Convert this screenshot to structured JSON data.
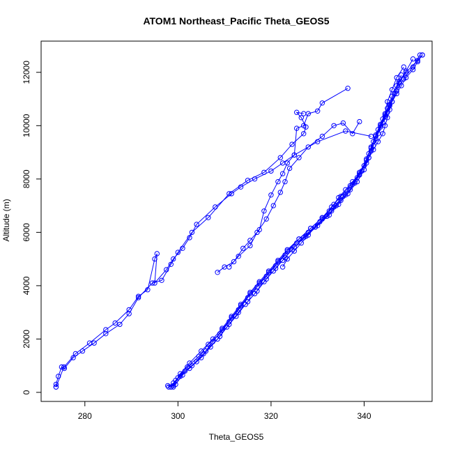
{
  "chart_data": {
    "type": "line",
    "title": "ATOM1 Northeast_Pacific Theta_GEOS5",
    "xlabel": "Theta_GEOS5",
    "ylabel": "Altitude (m)",
    "xlim": [
      270.6,
      354.6
    ],
    "ylim": [
      -340,
      13170
    ],
    "x_ticks": [
      280,
      300,
      320,
      340
    ],
    "y_ticks": [
      0,
      2000,
      4000,
      6000,
      8000,
      10000,
      12000
    ],
    "grid": false,
    "legend": "none",
    "marker": "open-circle",
    "color": "#0000ff",
    "series": [
      {
        "points": [
          [
            273.8,
            200
          ],
          [
            273.8,
            300
          ],
          [
            274.3,
            600
          ],
          [
            275.0,
            950
          ],
          [
            275.6,
            900
          ],
          [
            277.5,
            1300
          ],
          [
            279.5,
            1550
          ],
          [
            282.0,
            1850
          ],
          [
            284.5,
            2200
          ],
          [
            287.5,
            2550
          ],
          [
            289.5,
            2950
          ],
          [
            291.5,
            3550
          ],
          [
            294.5,
            4100
          ],
          [
            296.5,
            4200
          ],
          [
            298.5,
            4800
          ],
          [
            300.0,
            5250
          ],
          [
            303.0,
            6000
          ],
          [
            306.5,
            6550
          ],
          [
            311.0,
            7450
          ],
          [
            315.0,
            7950
          ],
          [
            318.5,
            8250
          ],
          [
            322.0,
            8800
          ],
          [
            324.5,
            9300
          ],
          [
            327.0,
            9700
          ],
          [
            327.5,
            9950
          ],
          [
            326.5,
            10300
          ],
          [
            325.5,
            10500
          ],
          [
            327.0,
            10450
          ]
        ]
      },
      {
        "points": [
          [
            273.8,
            200
          ],
          [
            275.5,
            950
          ],
          [
            278.0,
            1450
          ],
          [
            281.0,
            1850
          ],
          [
            284.5,
            2350
          ],
          [
            286.5,
            2600
          ],
          [
            289.5,
            3100
          ],
          [
            291.5,
            3600
          ],
          [
            293.5,
            3850
          ],
          [
            295.0,
            5000
          ],
          [
            295.5,
            5200
          ],
          [
            295.0,
            4100
          ],
          [
            297.5,
            4600
          ],
          [
            299.0,
            5000
          ],
          [
            301.0,
            5400
          ],
          [
            302.5,
            5800
          ],
          [
            304.0,
            6300
          ],
          [
            308.0,
            6950
          ],
          [
            311.5,
            7450
          ],
          [
            313.5,
            7700
          ],
          [
            316.5,
            8000
          ],
          [
            320.0,
            8300
          ],
          [
            322.5,
            8600
          ],
          [
            325.0,
            8900
          ],
          [
            330.0,
            9400
          ],
          [
            336.0,
            9800
          ],
          [
            341.5,
            9600
          ]
        ]
      },
      {
        "points": [
          [
            308.5,
            4500
          ],
          [
            310.0,
            4700
          ],
          [
            312.0,
            4900
          ],
          [
            314.0,
            5400
          ],
          [
            315.5,
            5700
          ],
          [
            317.5,
            6100
          ],
          [
            318.5,
            6800
          ],
          [
            320.0,
            7400
          ],
          [
            321.5,
            7900
          ],
          [
            322.5,
            8200
          ],
          [
            323.5,
            8600
          ],
          [
            325.0,
            8900
          ],
          [
            325.5,
            9900
          ],
          [
            327.0,
            10000
          ],
          [
            328.0,
            10450
          ],
          [
            330.0,
            10550
          ],
          [
            331.0,
            10850
          ],
          [
            336.5,
            11400
          ]
        ]
      },
      {
        "points": [
          [
            311.0,
            4700
          ],
          [
            313.0,
            5100
          ],
          [
            315.5,
            5500
          ],
          [
            317.0,
            6000
          ],
          [
            319.0,
            6500
          ],
          [
            320.5,
            7000
          ],
          [
            322.0,
            7500
          ],
          [
            323.0,
            7900
          ],
          [
            324.0,
            8400
          ],
          [
            326.0,
            8800
          ],
          [
            328.0,
            9200
          ],
          [
            331.0,
            9600
          ],
          [
            333.5,
            10000
          ],
          [
            335.5,
            10100
          ],
          [
            337.5,
            9700
          ],
          [
            339.0,
            10150
          ]
        ]
      },
      {
        "points": [
          [
            297.8,
            250
          ],
          [
            298.5,
            200
          ],
          [
            299.5,
            300
          ],
          [
            301.0,
            650
          ],
          [
            303.0,
            1000
          ],
          [
            305.5,
            1450
          ],
          [
            307.5,
            1900
          ],
          [
            309.5,
            2350
          ],
          [
            311.5,
            2800
          ],
          [
            313.5,
            3250
          ],
          [
            315.5,
            3700
          ],
          [
            317.5,
            4100
          ],
          [
            319.5,
            4500
          ],
          [
            321.5,
            4900
          ],
          [
            323.5,
            5300
          ],
          [
            326.0,
            5750
          ],
          [
            328.5,
            6150
          ],
          [
            331.0,
            6550
          ],
          [
            333.5,
            6950
          ],
          [
            335.5,
            7350
          ],
          [
            337.5,
            7800
          ],
          [
            339.0,
            8250
          ],
          [
            340.5,
            8700
          ],
          [
            341.5,
            9150
          ],
          [
            342.5,
            9600
          ],
          [
            343.5,
            10000
          ],
          [
            344.5,
            10400
          ],
          [
            345.5,
            10800
          ],
          [
            346.5,
            11200
          ],
          [
            347.5,
            11600
          ],
          [
            349.0,
            12000
          ],
          [
            351.5,
            12450
          ],
          [
            352.5,
            12650
          ]
        ]
      },
      {
        "points": [
          [
            298.0,
            200
          ],
          [
            299.0,
            350
          ],
          [
            300.5,
            600
          ],
          [
            302.5,
            900
          ],
          [
            305.0,
            1300
          ],
          [
            307.0,
            1700
          ],
          [
            309.0,
            2100
          ],
          [
            311.0,
            2550
          ],
          [
            313.0,
            3000
          ],
          [
            315.0,
            3400
          ],
          [
            317.0,
            3800
          ],
          [
            319.0,
            4250
          ],
          [
            321.0,
            4650
          ],
          [
            323.0,
            5050
          ],
          [
            325.0,
            5450
          ],
          [
            327.5,
            5850
          ],
          [
            330.0,
            6250
          ],
          [
            332.5,
            6650
          ],
          [
            334.5,
            7050
          ],
          [
            336.5,
            7450
          ],
          [
            338.5,
            7900
          ],
          [
            340.0,
            8350
          ],
          [
            341.0,
            8800
          ],
          [
            342.0,
            9250
          ],
          [
            343.0,
            9700
          ],
          [
            344.0,
            10100
          ],
          [
            345.0,
            10500
          ],
          [
            346.0,
            10900
          ],
          [
            347.0,
            11300
          ],
          [
            348.5,
            11750
          ],
          [
            350.5,
            12200
          ],
          [
            352.0,
            12650
          ]
        ]
      },
      {
        "points": [
          [
            298.5,
            200
          ],
          [
            299.5,
            450
          ],
          [
            301.5,
            800
          ],
          [
            304.0,
            1150
          ],
          [
            306.0,
            1550
          ],
          [
            308.5,
            2000
          ],
          [
            310.5,
            2450
          ],
          [
            312.5,
            2850
          ],
          [
            314.5,
            3300
          ],
          [
            316.5,
            3700
          ],
          [
            318.5,
            4150
          ],
          [
            320.5,
            4550
          ],
          [
            322.5,
            4950
          ],
          [
            324.5,
            5350
          ],
          [
            327.0,
            5800
          ],
          [
            329.5,
            6200
          ],
          [
            332.0,
            6600
          ],
          [
            334.0,
            7000
          ],
          [
            336.0,
            7400
          ],
          [
            338.0,
            7850
          ],
          [
            339.5,
            8300
          ],
          [
            340.5,
            8750
          ],
          [
            341.5,
            9200
          ],
          [
            342.5,
            9650
          ],
          [
            343.5,
            10050
          ],
          [
            344.5,
            10450
          ],
          [
            345.0,
            10900
          ],
          [
            346.0,
            11350
          ],
          [
            347.0,
            11800
          ],
          [
            348.5,
            12200
          ]
        ]
      },
      {
        "points": [
          [
            299.0,
            250
          ],
          [
            300.0,
            550
          ],
          [
            302.0,
            950
          ],
          [
            304.5,
            1350
          ],
          [
            306.5,
            1800
          ],
          [
            309.0,
            2200
          ],
          [
            311.0,
            2650
          ],
          [
            313.0,
            3100
          ],
          [
            315.0,
            3550
          ],
          [
            317.0,
            3950
          ],
          [
            319.0,
            4350
          ],
          [
            321.0,
            4750
          ],
          [
            323.0,
            5150
          ],
          [
            325.5,
            5600
          ],
          [
            328.0,
            6000
          ],
          [
            330.5,
            6400
          ],
          [
            333.0,
            6800
          ],
          [
            335.0,
            7200
          ],
          [
            337.0,
            7600
          ],
          [
            338.5,
            8050
          ],
          [
            340.0,
            8500
          ],
          [
            341.0,
            8950
          ],
          [
            342.0,
            9400
          ],
          [
            343.0,
            9850
          ],
          [
            344.0,
            10250
          ],
          [
            345.0,
            10650
          ],
          [
            346.0,
            11100
          ],
          [
            347.0,
            11500
          ],
          [
            348.0,
            11900
          ]
        ]
      },
      {
        "points": [
          [
            299.0,
            200
          ],
          [
            300.5,
            700
          ],
          [
            302.5,
            1100
          ],
          [
            305.0,
            1550
          ],
          [
            307.5,
            2000
          ],
          [
            309.5,
            2400
          ],
          [
            311.5,
            2850
          ],
          [
            313.5,
            3300
          ],
          [
            315.5,
            3750
          ],
          [
            317.5,
            4150
          ],
          [
            319.5,
            4550
          ],
          [
            321.5,
            4950
          ],
          [
            323.5,
            5350
          ],
          [
            326.0,
            5750
          ],
          [
            328.5,
            6150
          ],
          [
            331.0,
            6550
          ],
          [
            333.0,
            6950
          ],
          [
            335.0,
            7350
          ],
          [
            337.0,
            7750
          ],
          [
            339.0,
            8150
          ],
          [
            340.5,
            8600
          ],
          [
            341.5,
            9050
          ],
          [
            342.5,
            9500
          ],
          [
            343.5,
            9950
          ],
          [
            344.5,
            10350
          ],
          [
            345.5,
            10750
          ],
          [
            346.5,
            11200
          ],
          [
            347.5,
            11650
          ],
          [
            349.0,
            12050
          ],
          [
            350.5,
            12500
          ]
        ]
      },
      {
        "points": [
          [
            322.5,
            4700
          ],
          [
            323.5,
            5000
          ],
          [
            325.0,
            5300
          ],
          [
            326.5,
            5600
          ],
          [
            328.0,
            5900
          ],
          [
            329.5,
            6200
          ],
          [
            331.0,
            6500
          ],
          [
            332.5,
            6800
          ],
          [
            333.5,
            7050
          ],
          [
            334.5,
            7300
          ],
          [
            336.0,
            7600
          ],
          [
            337.5,
            7900
          ],
          [
            339.0,
            8200
          ],
          [
            340.0,
            8500
          ],
          [
            341.0,
            8800
          ],
          [
            342.0,
            9100
          ],
          [
            343.0,
            9400
          ],
          [
            344.0,
            9700
          ],
          [
            344.5,
            10000
          ],
          [
            345.0,
            10300
          ],
          [
            345.5,
            10600
          ],
          [
            346.0,
            10900
          ],
          [
            347.0,
            11200
          ],
          [
            348.0,
            11500
          ],
          [
            349.0,
            11800
          ],
          [
            350.5,
            12100
          ],
          [
            351.5,
            12400
          ],
          [
            352.5,
            12650
          ]
        ]
      }
    ]
  }
}
